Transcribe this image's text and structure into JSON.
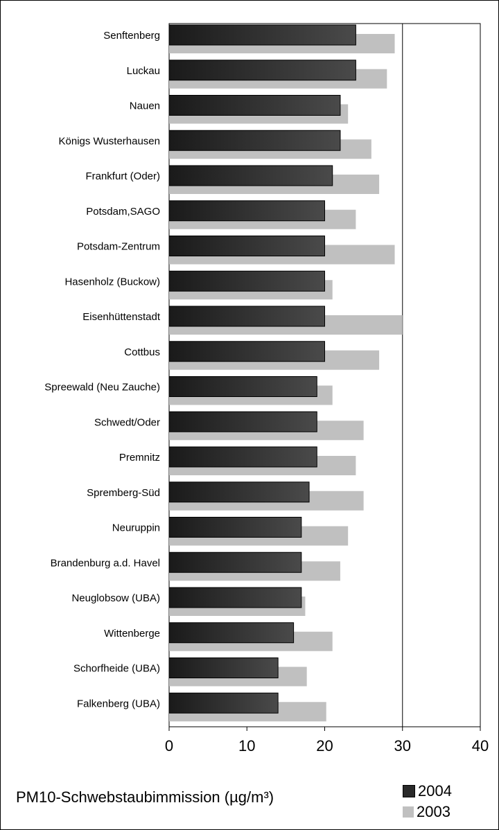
{
  "chart_data": {
    "type": "bar",
    "orientation": "horizontal",
    "xlabel": "PM10-Schwebstaubimmission (µg/m³)",
    "xlim": [
      0,
      40
    ],
    "xticks": [
      "0",
      "10",
      "20",
      "30",
      "40"
    ],
    "grid": "vertical gridlines at 30 and 40",
    "legend_position": "bottom-right",
    "categories": [
      "Senftenberg",
      "Luckau",
      "Nauen",
      "Königs Wusterhausen",
      "Frankfurt (Oder)",
      "Potsdam,SAGO",
      "Potsdam-Zentrum",
      "Hasenholz (Buckow)",
      "Eisenhüttenstadt",
      "Cottbus",
      "Spreewald (Neu Zauche)",
      "Schwedt/Oder",
      "Premnitz",
      "Spremberg-Süd",
      "Neuruppin",
      "Brandenburg a.d. Havel",
      "Neuglobsow (UBA)",
      "Wittenberge",
      "Schorfheide (UBA)",
      "Falkenberg (UBA)"
    ],
    "series": [
      {
        "name": "2004",
        "color": "#2a2a2a",
        "values": [
          24,
          24,
          22,
          22,
          21,
          20,
          20,
          20,
          20,
          20,
          19,
          19,
          19,
          18,
          17,
          17,
          17,
          16,
          14,
          14
        ]
      },
      {
        "name": "2003",
        "color": "#c0c0c0",
        "values": [
          29,
          28,
          23,
          26,
          27,
          24,
          29,
          21,
          30,
          27,
          21,
          25,
          24,
          25,
          23,
          22,
          17.5,
          21,
          17.7,
          20.2
        ]
      }
    ]
  }
}
